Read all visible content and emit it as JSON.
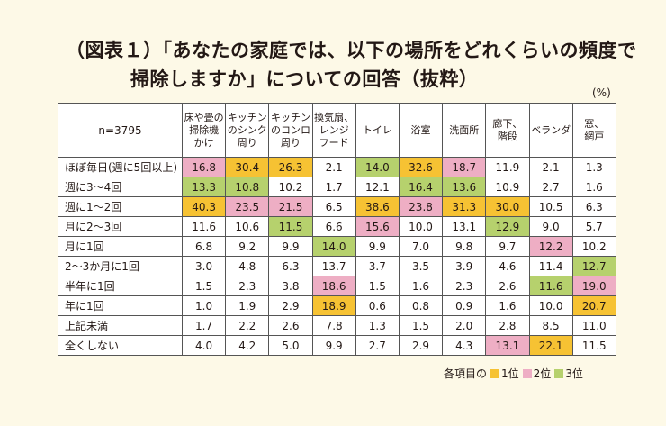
{
  "title": {
    "line1": "（図表１）「あなたの家庭では、以下の場所をどれくらいの頻度で",
    "line2": "掃除しますか」についての回答（抜粋）"
  },
  "unit": "(%)",
  "chart_data": {
    "type": "table",
    "sample_label": "n=3795",
    "columns": [
      "床や畳の\n掃除機\nかけ",
      "キッチン\nのシンク\n周り",
      "キッチン\nのコンロ\n周り",
      "換気扇、\nレンジ\nフード",
      "トイレ",
      "浴室",
      "洗面所",
      "廊下、\n階段",
      "ベランダ",
      "窓、\n網戸"
    ],
    "rows": [
      {
        "label": "ほぼ毎日(週に5回以上)",
        "values": [
          "16.8",
          "30.4",
          "26.3",
          "2.1",
          "14.0",
          "32.6",
          "18.7",
          "11.9",
          "2.1",
          "1.3"
        ],
        "ranks": [
          2,
          1,
          1,
          0,
          3,
          1,
          2,
          0,
          0,
          0
        ]
      },
      {
        "label": "週に3～4回",
        "values": [
          "13.3",
          "10.8",
          "10.2",
          "1.7",
          "12.1",
          "16.4",
          "13.6",
          "10.9",
          "2.7",
          "1.6"
        ],
        "ranks": [
          3,
          3,
          0,
          0,
          0,
          3,
          3,
          0,
          0,
          0
        ]
      },
      {
        "label": "週に1～2回",
        "values": [
          "40.3",
          "23.5",
          "21.5",
          "6.5",
          "38.6",
          "23.8",
          "31.3",
          "30.0",
          "10.5",
          "6.3"
        ],
        "ranks": [
          1,
          2,
          2,
          0,
          1,
          2,
          1,
          1,
          0,
          0
        ]
      },
      {
        "label": "月に2～3回",
        "values": [
          "11.6",
          "10.6",
          "11.5",
          "6.6",
          "15.6",
          "10.0",
          "13.1",
          "12.9",
          "9.0",
          "5.7"
        ],
        "ranks": [
          0,
          0,
          3,
          0,
          2,
          0,
          0,
          3,
          0,
          0
        ]
      },
      {
        "label": "月に1回",
        "values": [
          "6.8",
          "9.2",
          "9.9",
          "14.0",
          "9.9",
          "7.0",
          "9.8",
          "9.7",
          "12.2",
          "10.2"
        ],
        "ranks": [
          0,
          0,
          0,
          3,
          0,
          0,
          0,
          0,
          2,
          0
        ]
      },
      {
        "label": "2～3か月に1回",
        "values": [
          "3.0",
          "4.8",
          "6.3",
          "13.7",
          "3.7",
          "3.5",
          "3.9",
          "4.6",
          "11.4",
          "12.7"
        ],
        "ranks": [
          0,
          0,
          0,
          0,
          0,
          0,
          0,
          0,
          0,
          3
        ]
      },
      {
        "label": "半年に1回",
        "values": [
          "1.5",
          "2.3",
          "3.8",
          "18.6",
          "1.5",
          "1.6",
          "2.3",
          "2.6",
          "11.6",
          "19.0"
        ],
        "ranks": [
          0,
          0,
          0,
          2,
          0,
          0,
          0,
          0,
          3,
          2
        ]
      },
      {
        "label": "年に1回",
        "values": [
          "1.0",
          "1.9",
          "2.9",
          "18.9",
          "0.6",
          "0.8",
          "0.9",
          "1.6",
          "10.0",
          "20.7"
        ],
        "ranks": [
          0,
          0,
          0,
          1,
          0,
          0,
          0,
          0,
          0,
          1
        ]
      },
      {
        "label": "上記未満",
        "values": [
          "1.7",
          "2.2",
          "2.6",
          "7.8",
          "1.3",
          "1.5",
          "2.0",
          "2.8",
          "8.5",
          "11.0"
        ],
        "ranks": [
          0,
          0,
          0,
          0,
          0,
          0,
          0,
          0,
          0,
          0
        ]
      },
      {
        "label": "全くしない",
        "values": [
          "4.0",
          "4.2",
          "5.0",
          "9.9",
          "2.7",
          "2.9",
          "4.3",
          "13.1",
          "22.1",
          "11.5"
        ],
        "ranks": [
          0,
          0,
          0,
          0,
          0,
          0,
          0,
          2,
          1,
          0
        ]
      }
    ]
  },
  "legend": {
    "prefix": "各項目の",
    "items": [
      {
        "label": "1位",
        "color": "#f6c233"
      },
      {
        "label": "2位",
        "color": "#eeaec4"
      },
      {
        "label": "3位",
        "color": "#b6d16d"
      }
    ]
  },
  "colors": {
    "background": "#fdf9e7",
    "rank1": "#f6c233",
    "rank2": "#eeaec4",
    "rank3": "#b6d16d"
  }
}
